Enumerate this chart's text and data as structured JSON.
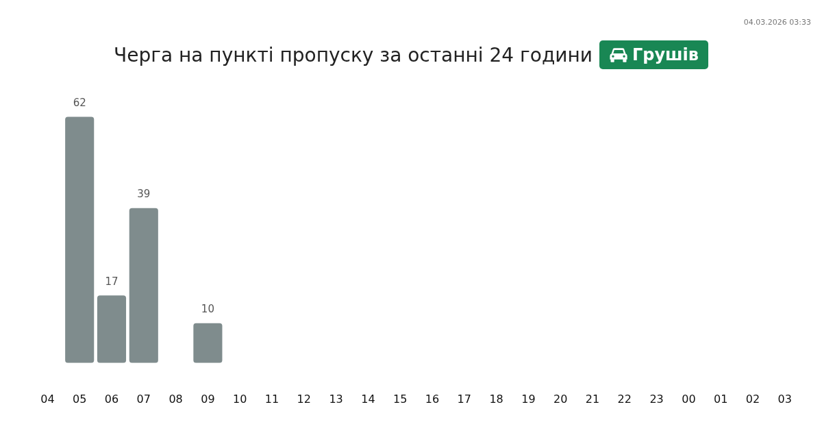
{
  "chart_data": {
    "type": "bar",
    "title": "Черга на пункті пропуску за останні 24 години",
    "subtitle": "Грушів",
    "annotations": [
      "04.03.2026 03:33"
    ],
    "categories": [
      "04",
      "05",
      "06",
      "07",
      "08",
      "09",
      "10",
      "11",
      "12",
      "13",
      "14",
      "15",
      "16",
      "17",
      "18",
      "19",
      "20",
      "21",
      "22",
      "23",
      "00",
      "01",
      "02",
      "03"
    ],
    "values": [
      null,
      62,
      17,
      39,
      null,
      10,
      null,
      null,
      null,
      null,
      null,
      null,
      null,
      null,
      null,
      null,
      null,
      null,
      null,
      null,
      null,
      null,
      null,
      null
    ],
    "color": "#7f8c8d",
    "data_labels": true,
    "tick_labels": "x"
  }
}
